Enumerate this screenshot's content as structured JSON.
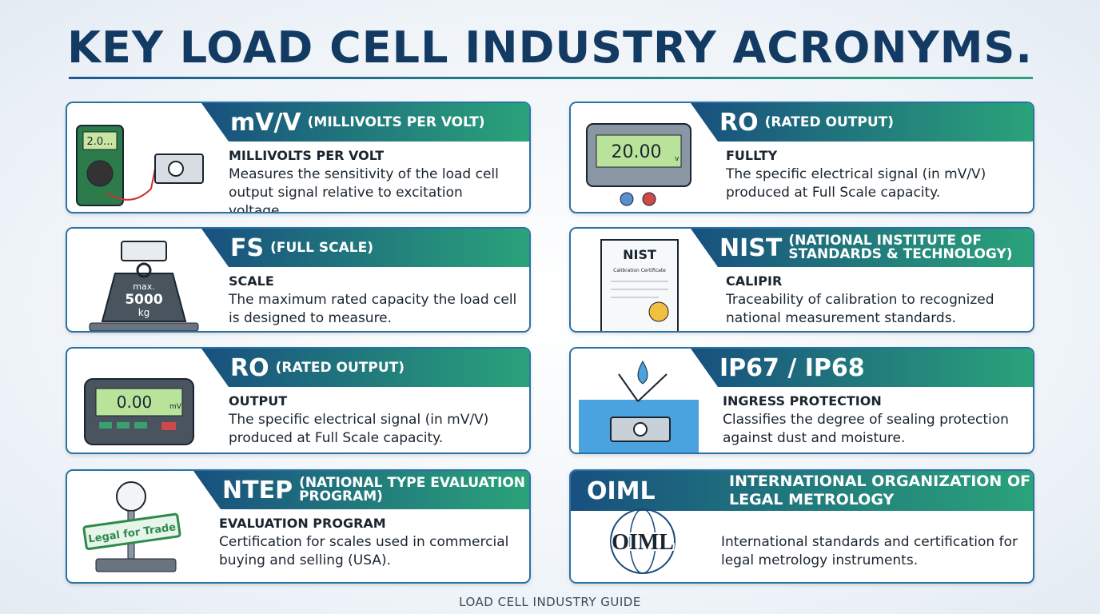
{
  "header": {
    "title": "KEY LOAD CELL INDUSTRY ACRONYMS."
  },
  "cards": [
    {
      "acronym": "mV/V",
      "expansion": "(MILLIVOLTS PER VOLT)",
      "subtitle": "MILLIVOLTS PER VOLT",
      "description": "Measures the sensitivity of the load cell output signal relative to excitation voltage.",
      "icon_text": [
        "2.0..."
      ]
    },
    {
      "acronym": "RO",
      "expansion": "(RATED OUTPUT)",
      "subtitle": "FULLTY",
      "description": "The specific electrical signal (in mV/V) produced at Full Scale capacity.",
      "icon_text": [
        "20.00",
        "v"
      ]
    },
    {
      "acronym": "FS",
      "expansion": "(FULL SCALE)",
      "subtitle": "SCALE",
      "description": "The maximum rated capacity the load cell is designed to measure.",
      "icon_text": [
        "max.",
        "5000",
        "kg"
      ]
    },
    {
      "acronym": "NIST",
      "expansion": "(NATIONAL INSTITUTE OF STANDARDS & TECHNOLOGY)",
      "subtitle": "CALIPIR",
      "description": "Traceability of calibration to recognized national measurement standards.",
      "icon_text": [
        "NIST",
        "Calibration Certificate"
      ]
    },
    {
      "acronym": "RO",
      "expansion": "(RATED OUTPUT)",
      "subtitle": "OUTPUT",
      "description": "The specific electrical signal (in mV/V) produced at Full Scale capacity.",
      "icon_text": [
        "0.00",
        "mV"
      ]
    },
    {
      "acronym": "IP67 / IP68",
      "expansion": "",
      "subtitle": "INGRESS PROTECTION",
      "description": "Classifies the degree of sealing protection against dust and moisture.",
      "icon_text": []
    },
    {
      "acronym": "NTEP",
      "expansion": "(NATIONAL TYPE EVALUATION PROGRAM)",
      "subtitle": "EVALUATION PROGRAM",
      "description": "Certification for scales used in commercial buying and selling (USA).",
      "icon_text": [
        "Legal for Trade"
      ]
    },
    {
      "acronym": "OIML",
      "expansion": "INTERNATIONAL ORGANIZATION OF LEGAL METROLOGY",
      "subtitle": "",
      "description": "International standards and certification for legal metrology instruments.",
      "icon_text": [
        "OIML"
      ]
    }
  ],
  "footer": {
    "text": "LOAD CELL INDUSTRY GUIDE"
  }
}
